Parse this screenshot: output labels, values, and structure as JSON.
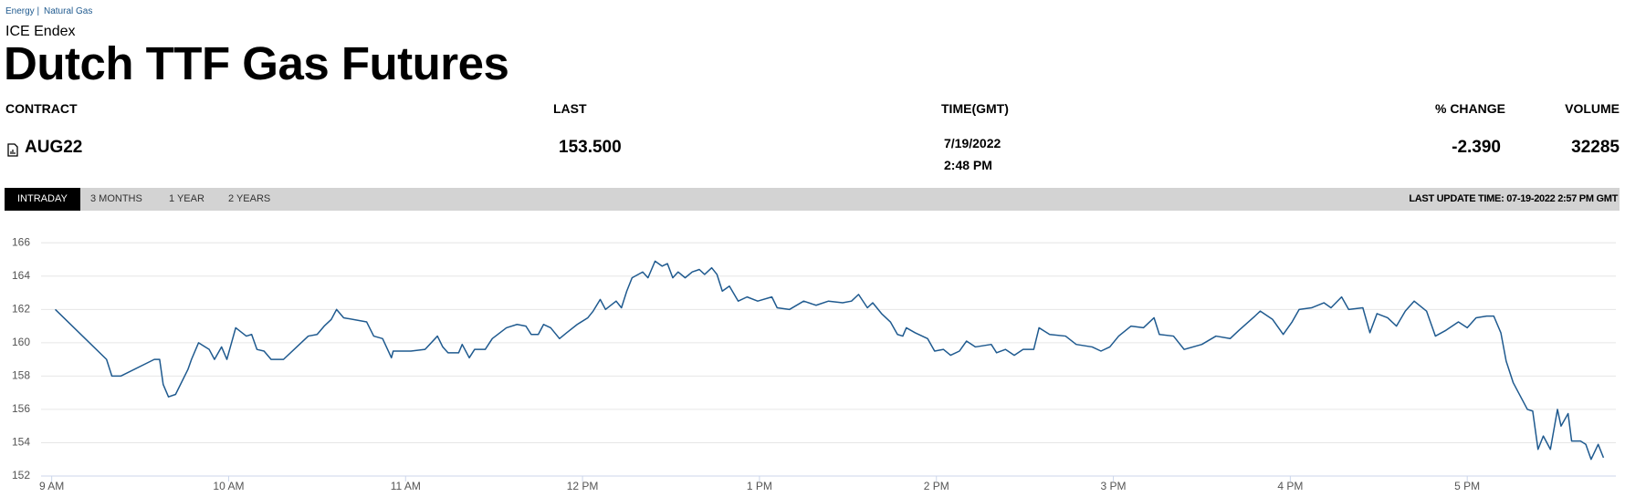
{
  "breadcrumb": [
    "Energy |",
    "Natural Gas"
  ],
  "exchange": "ICE Endex",
  "title": "Dutch TTF Gas Futures",
  "table": {
    "headers": [
      "CONTRACT",
      "LAST",
      "TIME(GMT)",
      "% CHANGE",
      "VOLUME"
    ],
    "row": {
      "contract": "AUG22",
      "last": "153.500",
      "date": "7/19/2022",
      "time": "2:48 PM",
      "change": "-2.390",
      "volume": "32285"
    }
  },
  "tabs": [
    "INTRADAY",
    "3 MONTHS",
    "1 YEAR",
    "2 YEARS"
  ],
  "last_update": "LAST UPDATE TIME: 07-19-2022 2:57 PM GMT",
  "chart_data": {
    "type": "line",
    "color": "#1f5a8f",
    "grid": true,
    "x": [
      9.02,
      9.31,
      9.34,
      9.39,
      9.58,
      9.61,
      9.63,
      9.66,
      9.7,
      9.77,
      9.79,
      9.83,
      9.89,
      9.92,
      9.96,
      9.99,
      10.04,
      10.1,
      10.13,
      10.16,
      10.2,
      10.24,
      10.31,
      10.45,
      10.5,
      10.54,
      10.58,
      10.61,
      10.65,
      10.78,
      10.82,
      10.87,
      10.92,
      10.93,
      11.03,
      11.11,
      11.18,
      11.21,
      11.24,
      11.3,
      11.32,
      11.36,
      11.39,
      11.45,
      11.49,
      11.57,
      11.63,
      11.68,
      11.71,
      11.75,
      11.78,
      11.82,
      11.87,
      11.91,
      11.97,
      12.03,
      12.06,
      12.1,
      12.13,
      12.19,
      12.22,
      12.25,
      12.28,
      12.34,
      12.37,
      12.41,
      12.45,
      12.48,
      12.51,
      12.54,
      12.58,
      12.62,
      12.66,
      12.69,
      12.73,
      12.76,
      12.79,
      12.83,
      12.88,
      12.93,
      12.99,
      13.07,
      13.1,
      13.17,
      13.25,
      13.32,
      13.39,
      13.47,
      13.52,
      13.56,
      13.61,
      13.64,
      13.69,
      13.74,
      13.78,
      13.81,
      13.83,
      13.88,
      13.95,
      13.99,
      14.04,
      14.08,
      14.13,
      14.17,
      14.22,
      14.31,
      14.34,
      14.39,
      14.44,
      14.49,
      14.55,
      14.58,
      14.64,
      14.73,
      14.79,
      14.88,
      14.93,
      14.98,
      15.03,
      15.1,
      15.17,
      15.23,
      15.26,
      15.34,
      15.4,
      15.5,
      15.58,
      15.66,
      15.71,
      15.8,
      15.83,
      15.9,
      15.96,
      16.01,
      16.05,
      16.12,
      16.19,
      16.23,
      16.29,
      16.33,
      16.41,
      16.45,
      16.49,
      16.55,
      16.6,
      16.65,
      16.7,
      16.77,
      16.82,
      16.88,
      16.95,
      17.0,
      17.05,
      17.11,
      17.15,
      17.19,
      17.22,
      17.26,
      17.29,
      17.34,
      17.37,
      17.4,
      17.43,
      17.47,
      17.51,
      17.53,
      17.57,
      17.59,
      17.64,
      17.67,
      17.7,
      17.74,
      17.77
    ],
    "values": [
      162.0,
      159.0,
      158.0,
      158.0,
      159.0,
      159.0,
      157.5,
      156.75,
      156.9,
      158.4,
      159.0,
      160.0,
      159.6,
      159.0,
      159.75,
      159.0,
      160.9,
      160.4,
      160.5,
      159.6,
      159.5,
      159.0,
      159.0,
      160.4,
      160.5,
      161.0,
      161.4,
      162.0,
      161.5,
      161.25,
      160.4,
      160.25,
      159.1,
      159.5,
      159.5,
      159.6,
      160.4,
      159.75,
      159.4,
      159.4,
      159.9,
      159.1,
      159.6,
      159.6,
      160.25,
      160.9,
      161.1,
      161.0,
      160.5,
      160.5,
      161.1,
      160.9,
      160.25,
      160.6,
      161.1,
      161.5,
      161.9,
      162.6,
      162.0,
      162.5,
      162.1,
      163.1,
      163.9,
      164.25,
      163.9,
      164.9,
      164.6,
      164.75,
      163.9,
      164.25,
      163.9,
      164.25,
      164.4,
      164.1,
      164.5,
      164.1,
      163.1,
      163.4,
      162.5,
      162.75,
      162.5,
      162.75,
      162.1,
      162.0,
      162.5,
      162.25,
      162.5,
      162.4,
      162.5,
      162.9,
      162.1,
      162.4,
      161.75,
      161.25,
      160.5,
      160.4,
      160.9,
      160.6,
      160.25,
      159.5,
      159.6,
      159.25,
      159.5,
      160.1,
      159.75,
      159.9,
      159.4,
      159.6,
      159.25,
      159.6,
      159.6,
      160.9,
      160.5,
      160.4,
      159.9,
      159.75,
      159.5,
      159.75,
      160.4,
      161.0,
      160.9,
      161.5,
      160.5,
      160.4,
      159.6,
      159.9,
      160.4,
      160.25,
      160.75,
      161.6,
      161.9,
      161.4,
      160.5,
      161.25,
      162.0,
      162.1,
      162.4,
      162.1,
      162.75,
      162.0,
      162.1,
      160.6,
      161.75,
      161.5,
      161.0,
      161.9,
      162.5,
      161.9,
      160.4,
      160.75,
      161.25,
      160.9,
      161.5,
      161.6,
      161.6,
      160.6,
      158.9,
      157.6,
      157.0,
      156.0,
      155.9,
      153.6,
      154.4,
      153.6,
      156.0,
      155.0,
      155.75,
      154.1,
      154.1,
      153.9,
      153.0,
      153.9,
      153.1
    ],
    "xlim": [
      8.94,
      17.84
    ],
    "ylim": [
      152,
      167
    ],
    "yticks": [
      152,
      154,
      156,
      158,
      160,
      162,
      164,
      166
    ],
    "xticks": [
      {
        "value": 9,
        "label": "9 AM"
      },
      {
        "value": 10,
        "label": "10 AM"
      },
      {
        "value": 11,
        "label": "11 AM"
      },
      {
        "value": 12,
        "label": "12 PM"
      },
      {
        "value": 13,
        "label": "1 PM"
      },
      {
        "value": 14,
        "label": "2 PM"
      },
      {
        "value": 15,
        "label": "3 PM"
      },
      {
        "value": 16,
        "label": "4 PM"
      },
      {
        "value": 17,
        "label": "5 PM"
      }
    ]
  }
}
